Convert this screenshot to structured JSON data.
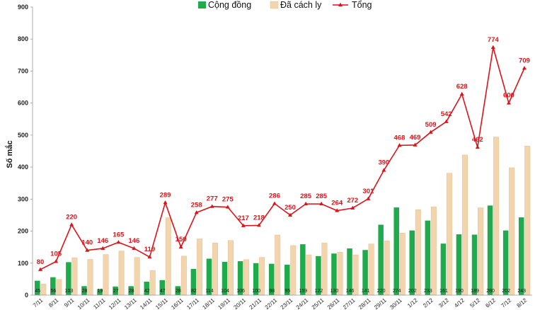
{
  "chart_data": {
    "type": "bar",
    "title": "",
    "xlabel": "",
    "ylabel": "Số mắc",
    "ylim": [
      0,
      900
    ],
    "yticks": [
      0,
      100,
      200,
      300,
      400,
      500,
      600,
      700,
      800,
      900
    ],
    "legend_position": "top",
    "categories": [
      "7/11",
      "8/11",
      "9/11",
      "10/11",
      "11/11",
      "12/11",
      "13/11",
      "14/11",
      "15/11",
      "16/11",
      "17/11",
      "18/11",
      "19/11",
      "20/11",
      "21/11",
      "22/11",
      "23/11",
      "24/11",
      "25/11",
      "26/11",
      "27/11",
      "28/11",
      "29/11",
      "30/11",
      "1/12",
      "2/12",
      "3/12",
      "4/12",
      "5/12",
      "6/12",
      "7/12",
      "8/12"
    ],
    "series": [
      {
        "name": "Cộng đồng",
        "type": "bar",
        "color": "#1faa4b",
        "values": [
          45,
          56,
          103,
          28,
          19,
          27,
          28,
          42,
          47,
          28,
          82,
          114,
          104,
          106,
          100,
          98,
          95,
          159,
          122,
          130,
          146,
          141,
          220,
          274,
          202,
          233,
          161,
          190,
          189,
          280,
          202,
          243
        ]
      },
      {
        "name": "Đã cách ly",
        "type": "bar",
        "color": "#f2d4ad",
        "values": [
          35,
          49,
          117,
          112,
          127,
          138,
          118,
          77,
          242,
          122,
          176,
          163,
          171,
          111,
          118,
          188,
          155,
          126,
          163,
          134,
          126,
          160,
          170,
          194,
          267,
          276,
          381,
          438,
          273,
          494,
          398,
          466
        ]
      },
      {
        "name": "Tổng",
        "type": "line",
        "color": "#d9141b",
        "values": [
          80,
          105,
          220,
          140,
          146,
          165,
          146,
          119,
          289,
          150,
          258,
          277,
          275,
          217,
          218,
          286,
          250,
          285,
          285,
          264,
          272,
          301,
          390,
          468,
          469,
          509,
          542,
          628,
          462,
          774,
          600,
          709
        ]
      }
    ]
  }
}
